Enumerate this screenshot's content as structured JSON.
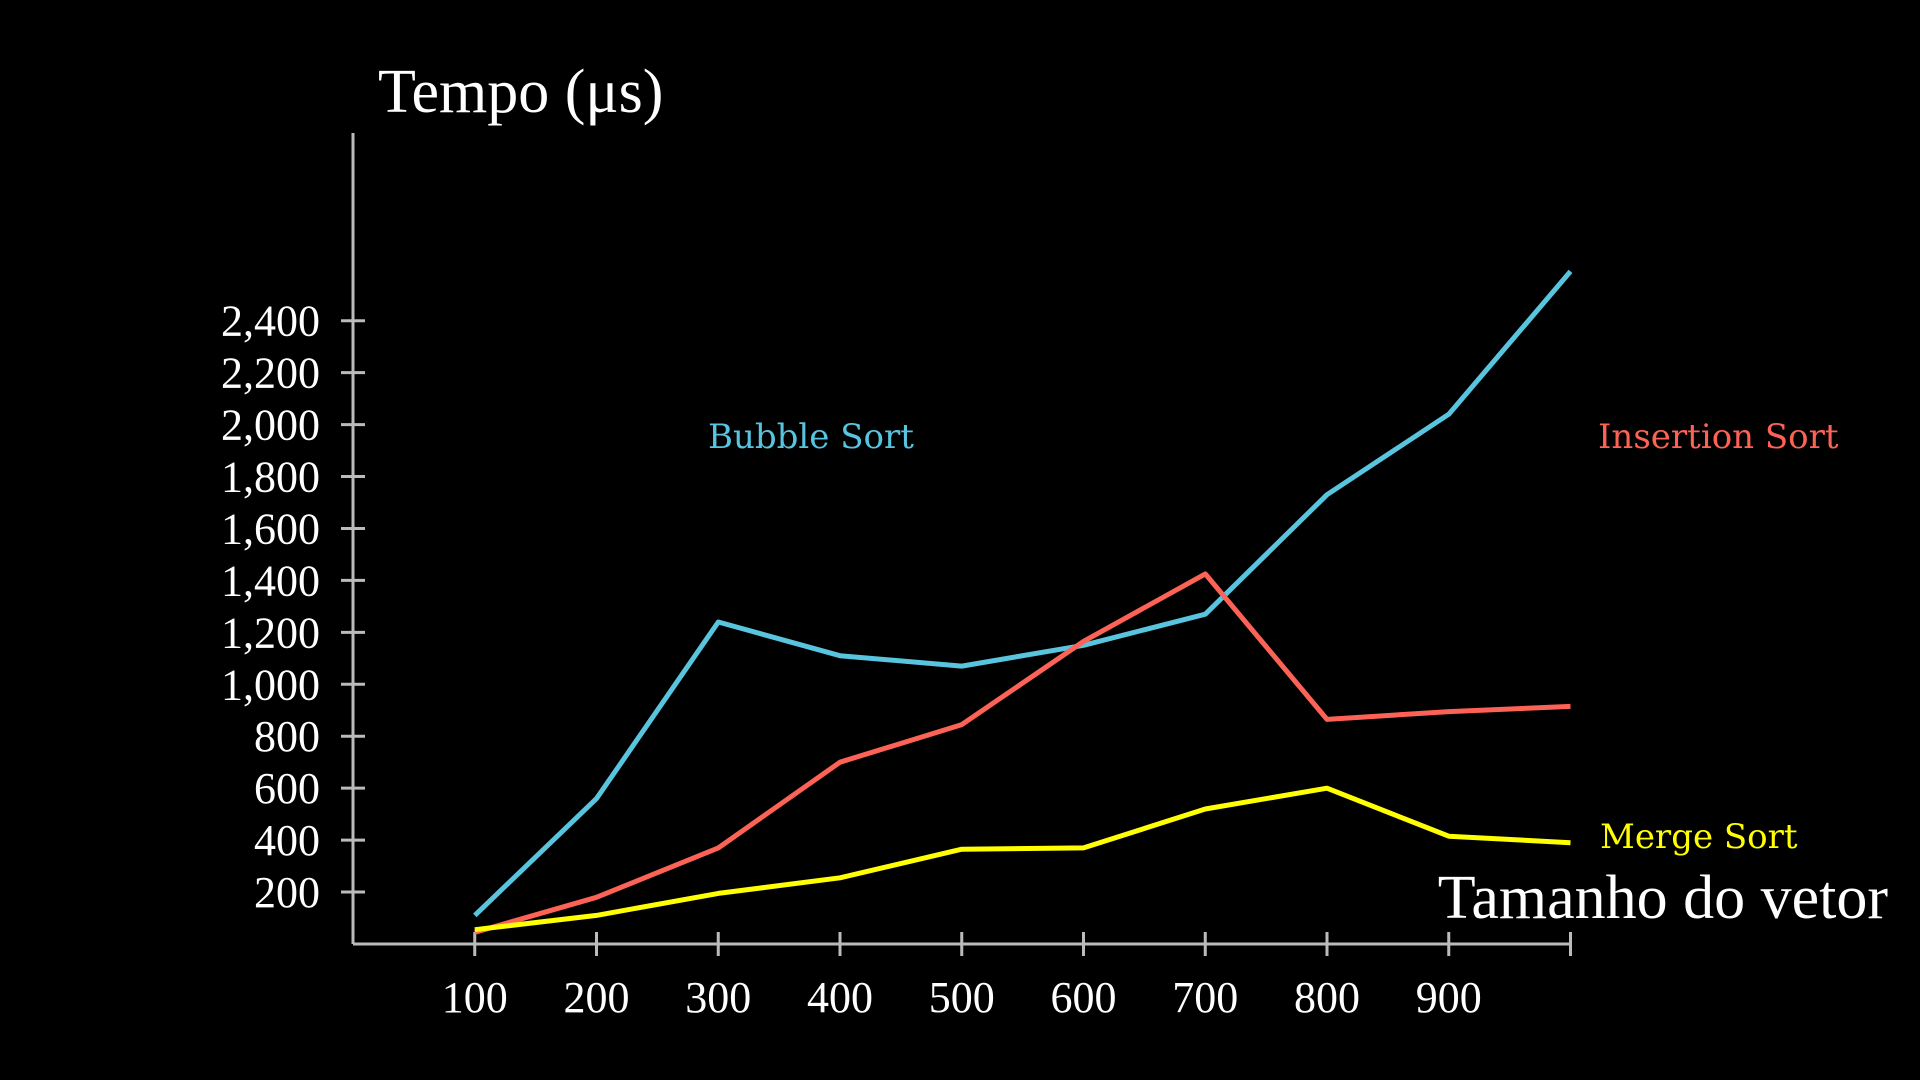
{
  "chart_data": {
    "type": "line",
    "title": "",
    "ylabel": "Tempo (μs)",
    "xlabel": "Tamanho do vetor",
    "x": [
      100,
      200,
      300,
      400,
      500,
      600,
      700,
      800,
      900,
      1000
    ],
    "xticks": [
      100,
      200,
      300,
      400,
      500,
      600,
      700,
      800,
      900
    ],
    "xtick_labels": [
      "100",
      "200",
      "300",
      "400",
      "500",
      "600",
      "700",
      "800",
      "900"
    ],
    "yticks": [
      200,
      400,
      600,
      800,
      1000,
      1200,
      1400,
      1600,
      1800,
      2000,
      2200,
      2400
    ],
    "ytick_labels": [
      "200",
      "400",
      "600",
      "800",
      "1,000",
      "1,200",
      "1,400",
      "1,600",
      "1,800",
      "2,000",
      "2,200",
      "2,400"
    ],
    "xlim": [
      0,
      1000
    ],
    "ylim": [
      0,
      2500
    ],
    "grid": false,
    "legend": "inline labels",
    "series": [
      {
        "name": "Bubble Sort",
        "color": "#58C4DD",
        "values": [
          110,
          560,
          1240,
          1110,
          1070,
          1150,
          1270,
          1730,
          2040,
          2590
        ]
      },
      {
        "name": "Insertion Sort",
        "color": "#FC6255",
        "values": [
          45,
          180,
          370,
          700,
          845,
          1165,
          1425,
          865,
          895,
          915
        ]
      },
      {
        "name": "Merge Sort",
        "color": "#FFFF00",
        "values": [
          55,
          110,
          195,
          255,
          365,
          370,
          520,
          600,
          415,
          390
        ]
      }
    ],
    "axis_color": "#BBBBBB",
    "text_color": "#FFFFFF"
  }
}
